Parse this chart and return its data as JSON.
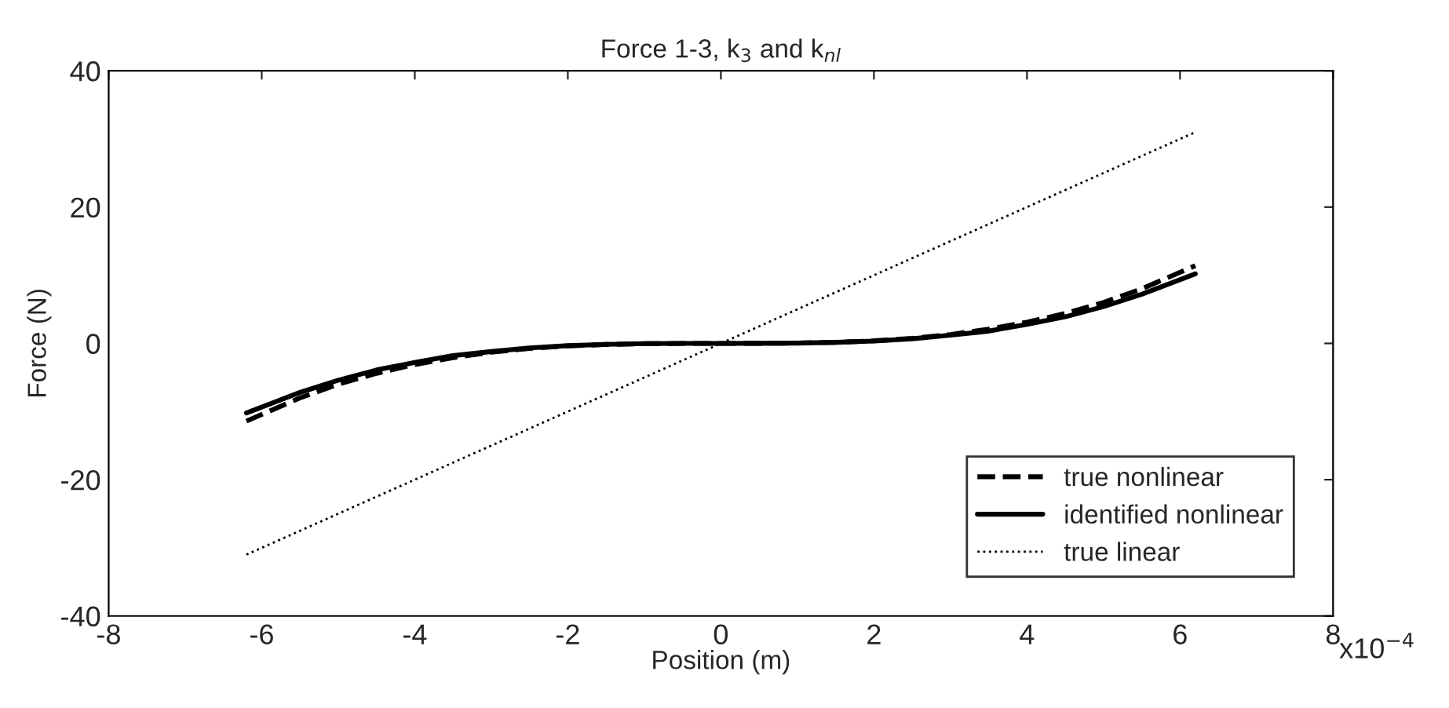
{
  "chart_data": {
    "type": "line",
    "title": "Force 1-3, k$_{3}$ and k$_{nl}$",
    "xlabel": "Position (m)",
    "ylabel": "Force (N)",
    "annotations": [
      "x10$^{−4}$"
    ],
    "xlim": [
      -8,
      8
    ],
    "xticks": [
      -8,
      -6,
      -4,
      -2,
      0,
      2,
      4,
      6,
      8
    ],
    "ylim": [
      -40,
      40
    ],
    "yticks": [
      -40,
      -20,
      0,
      20,
      40
    ],
    "grid": false,
    "legend": "bottom right",
    "series": [
      {
        "name": "true nonlinear",
        "color": "#000000",
        "line_style": "dashed",
        "x": [
          -6.2,
          -5.5,
          -5,
          -4.5,
          -4,
          -3.5,
          -3,
          -2.5,
          -2,
          -1.5,
          -1,
          -0.5,
          0,
          0.5,
          1,
          1.5,
          2,
          2.5,
          3,
          3.5,
          4,
          4.5,
          5,
          5.5,
          6.2
        ],
        "values": [
          -11.4,
          -8.0,
          -6.0,
          -4.4,
          -3.1,
          -2.1,
          -1.3,
          -0.75,
          -0.38,
          -0.16,
          -0.05,
          -0.01,
          0,
          0.01,
          0.05,
          0.16,
          0.38,
          0.75,
          1.3,
          2.1,
          3.1,
          4.4,
          6.0,
          8.0,
          11.4
        ]
      },
      {
        "name": "identified nonlinear",
        "color": "#000000",
        "line_style": "solid",
        "x": [
          -6.2,
          -5.5,
          -5,
          -4.5,
          -4,
          -3.5,
          -3,
          -2.5,
          -2,
          -1.5,
          -1,
          -0.5,
          0,
          0.5,
          1,
          1.5,
          2,
          2.5,
          3,
          3.5,
          4,
          4.5,
          5,
          5.5,
          6.2
        ],
        "values": [
          -10.2,
          -7.2,
          -5.4,
          -3.9,
          -2.8,
          -1.8,
          -1.2,
          -0.67,
          -0.34,
          -0.15,
          -0.04,
          -0.01,
          0,
          0.01,
          0.04,
          0.15,
          0.34,
          0.67,
          1.2,
          1.8,
          2.8,
          3.9,
          5.4,
          7.2,
          10.2
        ]
      },
      {
        "name": "true linear",
        "color": "#000000",
        "line_style": "dotted",
        "x": [
          -6.2,
          6.2
        ],
        "values": [
          -31,
          31
        ]
      }
    ]
  }
}
